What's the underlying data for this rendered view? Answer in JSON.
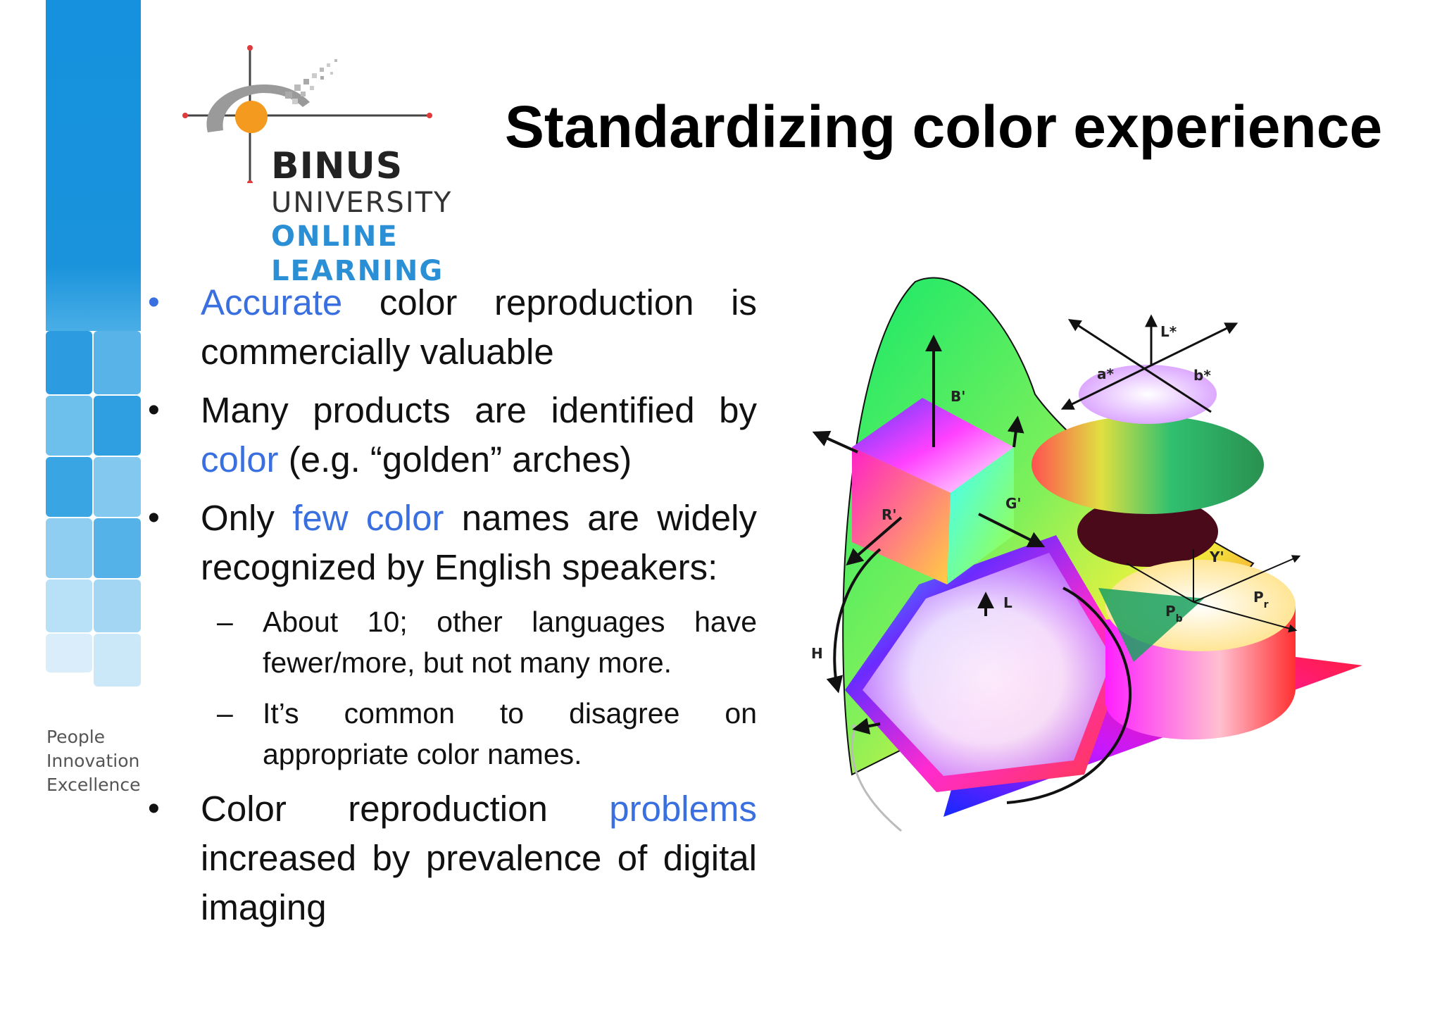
{
  "slide": {
    "title": "Standardizing color experience"
  },
  "logo": {
    "line1": "BINUS",
    "line2": "UNIVERSITY",
    "line3": "ONLINE",
    "line4": "LEARNING"
  },
  "tagline": [
    "People",
    "Innovation",
    "Excellence"
  ],
  "bullets": {
    "b1": {
      "hl": "Accurate",
      "rest": " color reproduction is commercially valuable"
    },
    "b2": {
      "pre": "Many products are identified by ",
      "hl": "color",
      "post": " (e.g. “golden” arches)"
    },
    "b3": {
      "pre": "Only ",
      "hl": "few color",
      "post": " names are widely recognized by English speakers:"
    },
    "b3_subs": [
      "About 10; other languages have fewer/more, but not many more.",
      "It’s common to disagree on appropriate color names."
    ],
    "b4": {
      "pre": "Color reproduction ",
      "hl": "problems",
      "post": " increased by prevalence of digital imaging"
    },
    "bullet_char": "•",
    "dash_char": "–"
  },
  "diagram_labels": {
    "B": "B'",
    "R": "R'",
    "G": "G'",
    "L": "L",
    "H": "H",
    "a": "a*",
    "b": "b*",
    "Lstar": "L*",
    "Y": "Y'",
    "Pb": "P",
    "Pb_sub": "b",
    "Pr": "P",
    "Pr_sub": "r"
  },
  "colors": {
    "accent_blue": "#3a6fe0",
    "strip_blue": "#1591dd",
    "logo_blue": "#2b8fd6",
    "logo_orange": "#f39a1f"
  }
}
